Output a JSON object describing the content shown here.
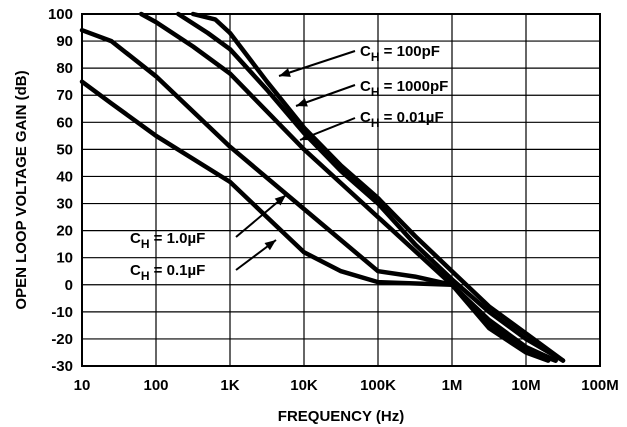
{
  "chart_data": {
    "type": "line",
    "title": "",
    "xlabel": "FREQUENCY (Hz)",
    "ylabel": "OPEN LOOP VOLTAGE GAIN (dB)",
    "x_scale": "log",
    "xlim": [
      10,
      100000000
    ],
    "ylim": [
      -30,
      100
    ],
    "grid": true,
    "x_ticks": [
      {
        "value": 10,
        "label": "10"
      },
      {
        "value": 100,
        "label": "100"
      },
      {
        "value": 1000,
        "label": "1K"
      },
      {
        "value": 10000,
        "label": "10K"
      },
      {
        "value": 100000,
        "label": "100K"
      },
      {
        "value": 1000000,
        "label": "1M"
      },
      {
        "value": 10000000,
        "label": "10M"
      },
      {
        "value": 100000000,
        "label": "100M"
      }
    ],
    "y_ticks": [
      {
        "value": 100,
        "label": "100"
      },
      {
        "value": 90,
        "label": "90"
      },
      {
        "value": 80,
        "label": "80"
      },
      {
        "value": 70,
        "label": "70"
      },
      {
        "value": 60,
        "label": "60"
      },
      {
        "value": 50,
        "label": "50"
      },
      {
        "value": 40,
        "label": "40"
      },
      {
        "value": 30,
        "label": "30"
      },
      {
        "value": 20,
        "label": "20"
      },
      {
        "value": 10,
        "label": "10"
      },
      {
        "value": 0,
        "label": "0"
      },
      {
        "value": -10,
        "label": "-10"
      },
      {
        "value": -20,
        "label": "-20"
      },
      {
        "value": -30,
        "label": "-30"
      }
    ],
    "series": [
      {
        "name": "CH = 100pF",
        "points": [
          [
            316,
            100
          ],
          [
            631,
            98
          ],
          [
            1000,
            93
          ],
          [
            3162,
            75
          ],
          [
            10000,
            58
          ],
          [
            31623,
            44
          ],
          [
            100000,
            32
          ],
          [
            316228,
            18
          ],
          [
            1000000,
            5
          ],
          [
            3162278,
            -8
          ],
          [
            10000000,
            -18
          ],
          [
            31622777,
            -28
          ]
        ]
      },
      {
        "name": "CH = 1000pF",
        "points": [
          [
            200,
            100
          ],
          [
            501,
            93
          ],
          [
            1000,
            87
          ],
          [
            3162,
            72
          ],
          [
            10000,
            56
          ],
          [
            31623,
            42
          ],
          [
            100000,
            30
          ],
          [
            316228,
            15
          ],
          [
            1000000,
            2
          ],
          [
            3162278,
            -10
          ],
          [
            10000000,
            -20
          ],
          [
            31622777,
            -28
          ]
        ]
      },
      {
        "name": "CH = 0.01µF",
        "points": [
          [
            63,
            100
          ],
          [
            100,
            97
          ],
          [
            316,
            88
          ],
          [
            1000,
            78
          ],
          [
            10000,
            50
          ],
          [
            100000,
            25
          ],
          [
            1000000,
            0
          ],
          [
            3162278,
            -13
          ],
          [
            10000000,
            -23
          ],
          [
            25118864,
            -28
          ]
        ]
      },
      {
        "name": "CH = 1.0µF",
        "points": [
          [
            10,
            94
          ],
          [
            25,
            90
          ],
          [
            100,
            77
          ],
          [
            1000,
            51
          ],
          [
            10000,
            28
          ],
          [
            100000,
            5
          ],
          [
            316228,
            3
          ],
          [
            1000000,
            0
          ],
          [
            3162278,
            -16
          ],
          [
            10000000,
            -25
          ],
          [
            19952623,
            -28
          ]
        ]
      },
      {
        "name": "CH = 0.1µF",
        "points": [
          [
            10,
            75
          ],
          [
            25,
            67
          ],
          [
            100,
            55
          ],
          [
            1000,
            38
          ],
          [
            3162,
            25
          ],
          [
            10000,
            12
          ],
          [
            31623,
            5
          ],
          [
            100000,
            1
          ],
          [
            1000000,
            0
          ],
          [
            3162278,
            -14
          ],
          [
            10000000,
            -24
          ],
          [
            25118864,
            -28
          ]
        ]
      }
    ],
    "annotations": [
      {
        "id": "ann_100pf",
        "main": "C",
        "sub": "H",
        "rest": " = 100pF",
        "series": "CH = 100pF"
      },
      {
        "id": "ann_1000pf",
        "main": "C",
        "sub": "H",
        "rest": " = 1000pF",
        "series": "CH = 1000pF"
      },
      {
        "id": "ann_001uf",
        "main": "C",
        "sub": "H",
        "rest": " = 0.01µF",
        "series": "CH = 0.01µF"
      },
      {
        "id": "ann_1uf",
        "main": "C",
        "sub": "H",
        "rest": " = 1.0µF",
        "series": "CH = 1.0µF"
      },
      {
        "id": "ann_01uf",
        "main": "C",
        "sub": "H",
        "rest": " = 0.1µF",
        "series": "CH = 0.1µF"
      }
    ]
  }
}
